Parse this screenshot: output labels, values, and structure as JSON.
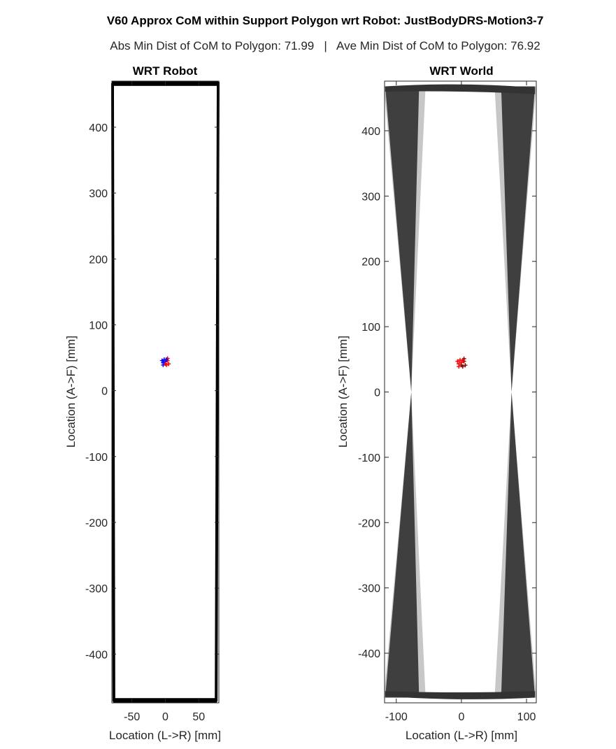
{
  "figure": {
    "title": "V60 Approx CoM within Support Polygon wrt Robot: JustBodyDRS-Motion3-7",
    "subtitle": "Abs Min Dist of CoM to Polygon: 71.99   |   Ave Min Dist of CoM to Polygon: 76.92"
  },
  "chart_data": [
    {
      "type": "line",
      "title": "WRT Robot",
      "xlabel": "Location (L->R) [mm]",
      "ylabel": "Location (A->F) [mm]",
      "xlim": [
        -80,
        80
      ],
      "ylim": [
        -474,
        470
      ],
      "xticks": [
        -50,
        0,
        50
      ],
      "yticks": [
        -400,
        -300,
        -200,
        -100,
        0,
        100,
        200,
        300,
        400
      ],
      "grid": false,
      "series": [
        {
          "kind": "support-polygon-outline",
          "color": "#000000",
          "x": [
            -79,
            79,
            76,
            -77,
            -79
          ],
          "y": [
            467,
            467,
            -470,
            -470,
            467
          ]
        }
      ],
      "com_points": {
        "colors": [
          "#0000ff",
          "#ff0000"
        ],
        "center": [
          0,
          44
        ],
        "spread_mm": 5
      }
    },
    {
      "type": "line",
      "title": "WRT World",
      "xlabel": "Location (L->R) [mm]",
      "ylabel": "Location (A->F) [mm]",
      "xlim": [
        -118,
        115
      ],
      "ylim": [
        -476,
        476
      ],
      "xticks": [
        -100,
        0,
        100
      ],
      "yticks": [
        -400,
        -300,
        -200,
        -100,
        0,
        100,
        200,
        300,
        400
      ],
      "grid": false,
      "series": [
        {
          "kind": "support-polygon-bowtie-envelope",
          "color": "#333333",
          "left_edge": {
            "x": [
              -117,
              -77,
              -117
            ],
            "y": [
              468,
              0,
              -468
            ]
          },
          "right_edge": {
            "x": [
              113,
              77,
              113
            ],
            "y": [
              468,
              0,
              -468
            ]
          },
          "inner_width_at_ends": 52
        }
      ],
      "com_points": {
        "colors": [
          "#ff0000",
          "#8b0000"
        ],
        "center": [
          0,
          45
        ],
        "spread_mm": 6
      }
    }
  ]
}
